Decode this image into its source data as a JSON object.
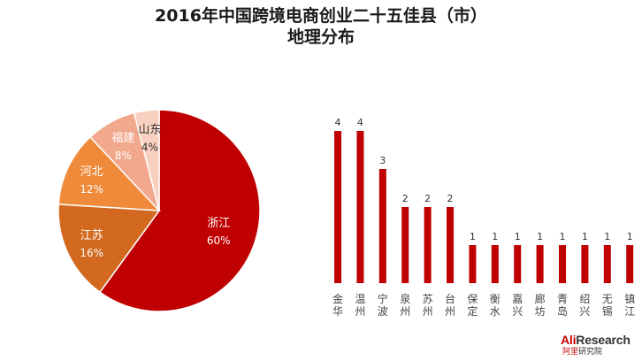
{
  "title": {
    "line1": "2016年中国跨境电商创业二十五佳县（市）",
    "line2": "地理分布"
  },
  "chart_data": [
    {
      "type": "pie",
      "slices": [
        {
          "name": "浙江",
          "value": 60,
          "label": "60%",
          "color": "#c00000"
        },
        {
          "name": "江苏",
          "value": 16,
          "label": "16%",
          "color": "#d2691e"
        },
        {
          "name": "河北",
          "value": 12,
          "label": "12%",
          "color": "#ee8a3a"
        },
        {
          "name": "福建",
          "value": 8,
          "label": "8%",
          "color": "#f2a88c"
        },
        {
          "name": "山东",
          "value": 4,
          "label": "4%",
          "color": "#f8d0c0"
        }
      ]
    },
    {
      "type": "bar",
      "categories": [
        "金华",
        "温州",
        "宁波",
        "泉州",
        "苏州",
        "台州",
        "保定",
        "衡水",
        "嘉兴",
        "廊坊",
        "青岛",
        "绍兴",
        "无锡",
        "镇江"
      ],
      "values": [
        4,
        4,
        3,
        2,
        2,
        2,
        1,
        1,
        1,
        1,
        1,
        1,
        1,
        1
      ],
      "ylim": [
        0,
        4
      ],
      "color": "#c00000"
    }
  ],
  "logo": {
    "ali": "Ali",
    "research": "Research",
    "sub_red": "阿里",
    "sub_dark": "研究院"
  }
}
